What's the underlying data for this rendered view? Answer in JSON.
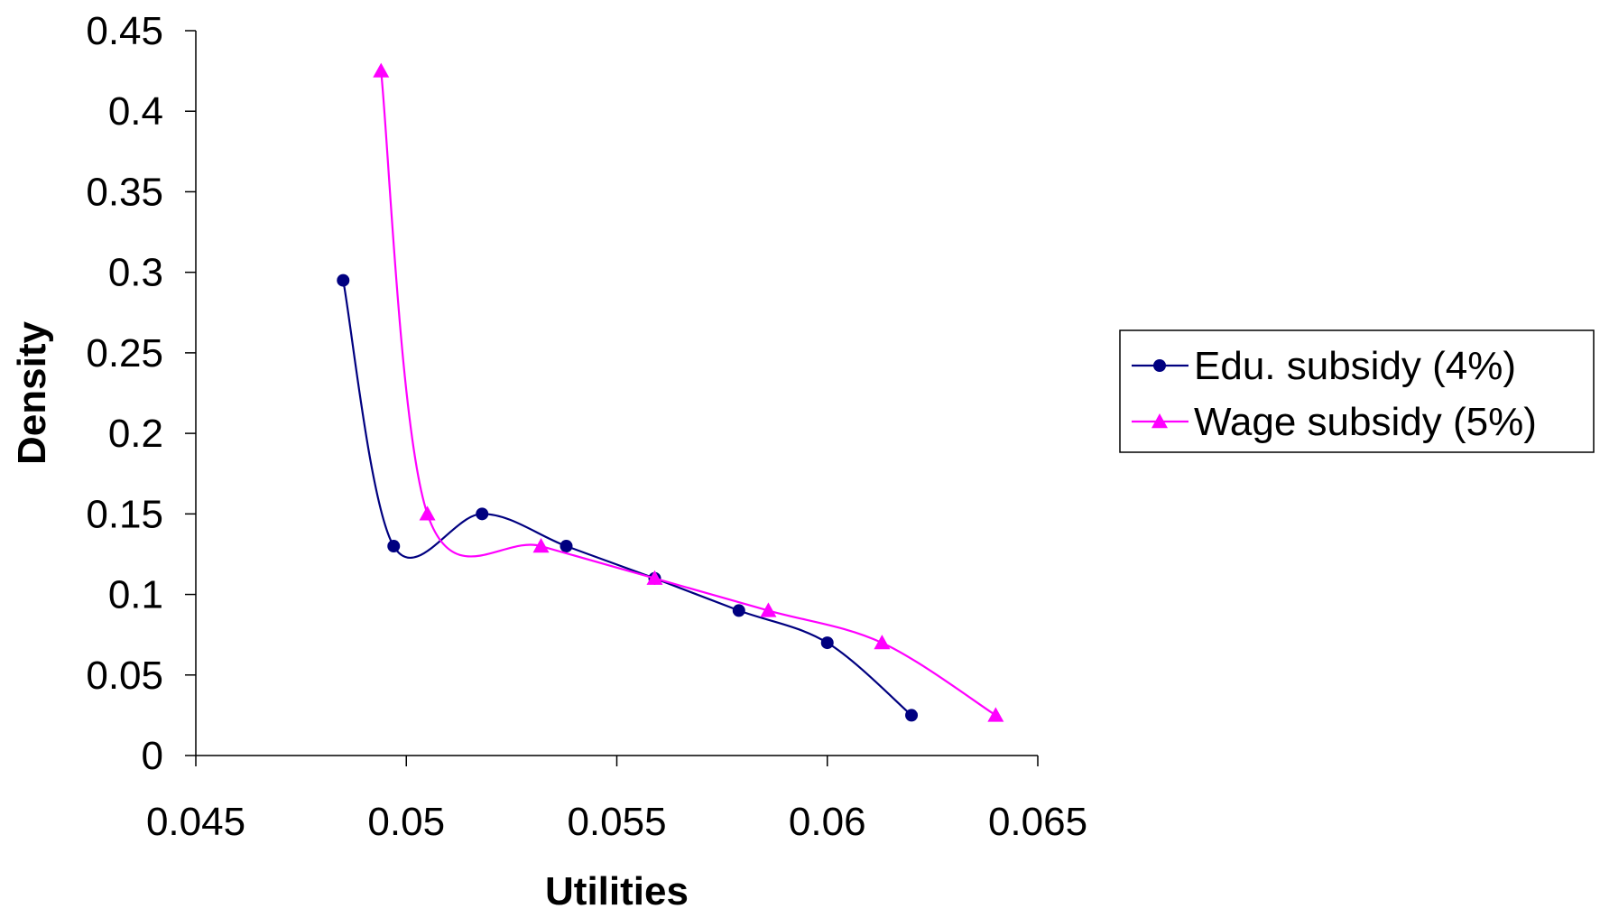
{
  "chart_data": {
    "type": "line",
    "title": "",
    "xlabel": "Utilities",
    "ylabel": "Density",
    "xlim": [
      0.045,
      0.065
    ],
    "ylim": [
      0,
      0.45
    ],
    "xticks": [
      0.045,
      0.05,
      0.055,
      0.06,
      0.065
    ],
    "xtick_labels": [
      "0.045",
      "0.05",
      "0.055",
      "0.06",
      "0.065"
    ],
    "yticks": [
      0,
      0.05,
      0.1,
      0.15,
      0.2,
      0.25,
      0.3,
      0.35,
      0.4,
      0.45
    ],
    "ytick_labels": [
      "0",
      "0.05",
      "0.1",
      "0.15",
      "0.2",
      "0.25",
      "0.3",
      "0.35",
      "0.4",
      "0.45"
    ],
    "grid": false,
    "smooth": true,
    "legend_position": "right",
    "series": [
      {
        "name": "Edu. subsidy (4%)",
        "color": "#000080",
        "marker": "circle",
        "x": [
          0.0485,
          0.0497,
          0.0518,
          0.0538,
          0.0559,
          0.0579,
          0.06,
          0.062
        ],
        "y": [
          0.295,
          0.13,
          0.15,
          0.13,
          0.11,
          0.09,
          0.07,
          0.025
        ]
      },
      {
        "name": "Wage subsidy (5%)",
        "color": "#ff00ff",
        "marker": "triangle",
        "x": [
          0.0494,
          0.0505,
          0.0532,
          0.0559,
          0.0586,
          0.0613,
          0.064
        ],
        "y": [
          0.425,
          0.15,
          0.13,
          0.11,
          0.09,
          0.07,
          0.025
        ]
      }
    ]
  }
}
